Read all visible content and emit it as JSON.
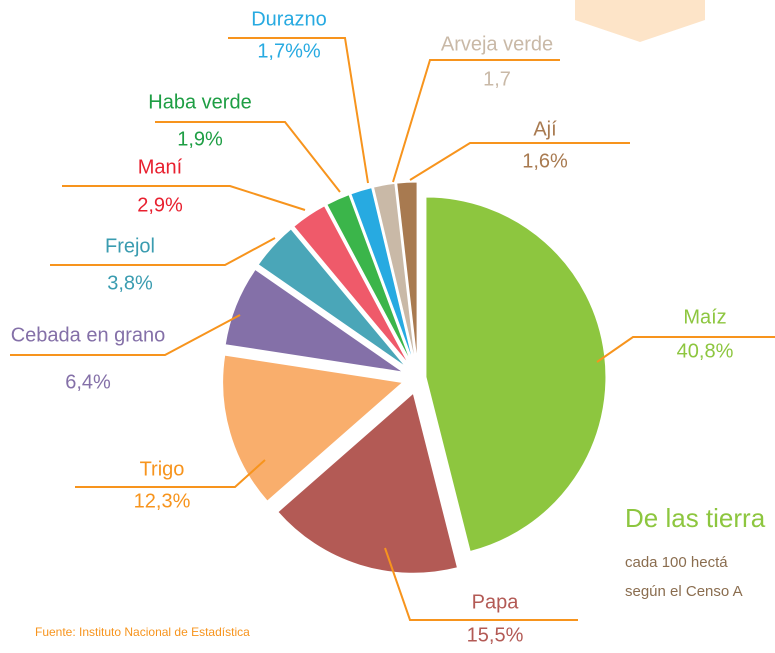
{
  "chart_data": {
    "type": "pie",
    "categories": [
      "Maíz",
      "Papa",
      "Trigo",
      "Cebada en grano",
      "Frejol",
      "Maní",
      "Haba verde",
      "Durazno",
      "Arveja verde",
      "Ají"
    ],
    "values": [
      40.8,
      15.5,
      12.3,
      6.4,
      3.8,
      2.9,
      1.9,
      1.7,
      1.7,
      1.6
    ],
    "value_labels": [
      "40,8%",
      "15,5%",
      "12,3%",
      "6,4%",
      "3,8%",
      "2,9%",
      "1,9%",
      "1,7%%",
      "1,7",
      "1,6%"
    ],
    "colors": [
      "#8dc63f",
      "#b35a55",
      "#f9ae6c",
      "#8470a8",
      "#4aa6b8",
      "#ef5a6a",
      "#3bb54a",
      "#27aae1",
      "#c9b9a7",
      "#a87a50"
    ],
    "label_colors": [
      "#8dc63f",
      "#b35a55",
      "#f7941d",
      "#8470a8",
      "#3a9cb0",
      "#e8202f",
      "#1e9e44",
      "#27aae1",
      "#c9b9a7",
      "#a87a50"
    ]
  },
  "text": {
    "headline": "De las tierra",
    "line1": "cada 100 hectá",
    "line2": "según el Censo A",
    "source": "Fuente: Instituto Nacional de Estadística"
  }
}
